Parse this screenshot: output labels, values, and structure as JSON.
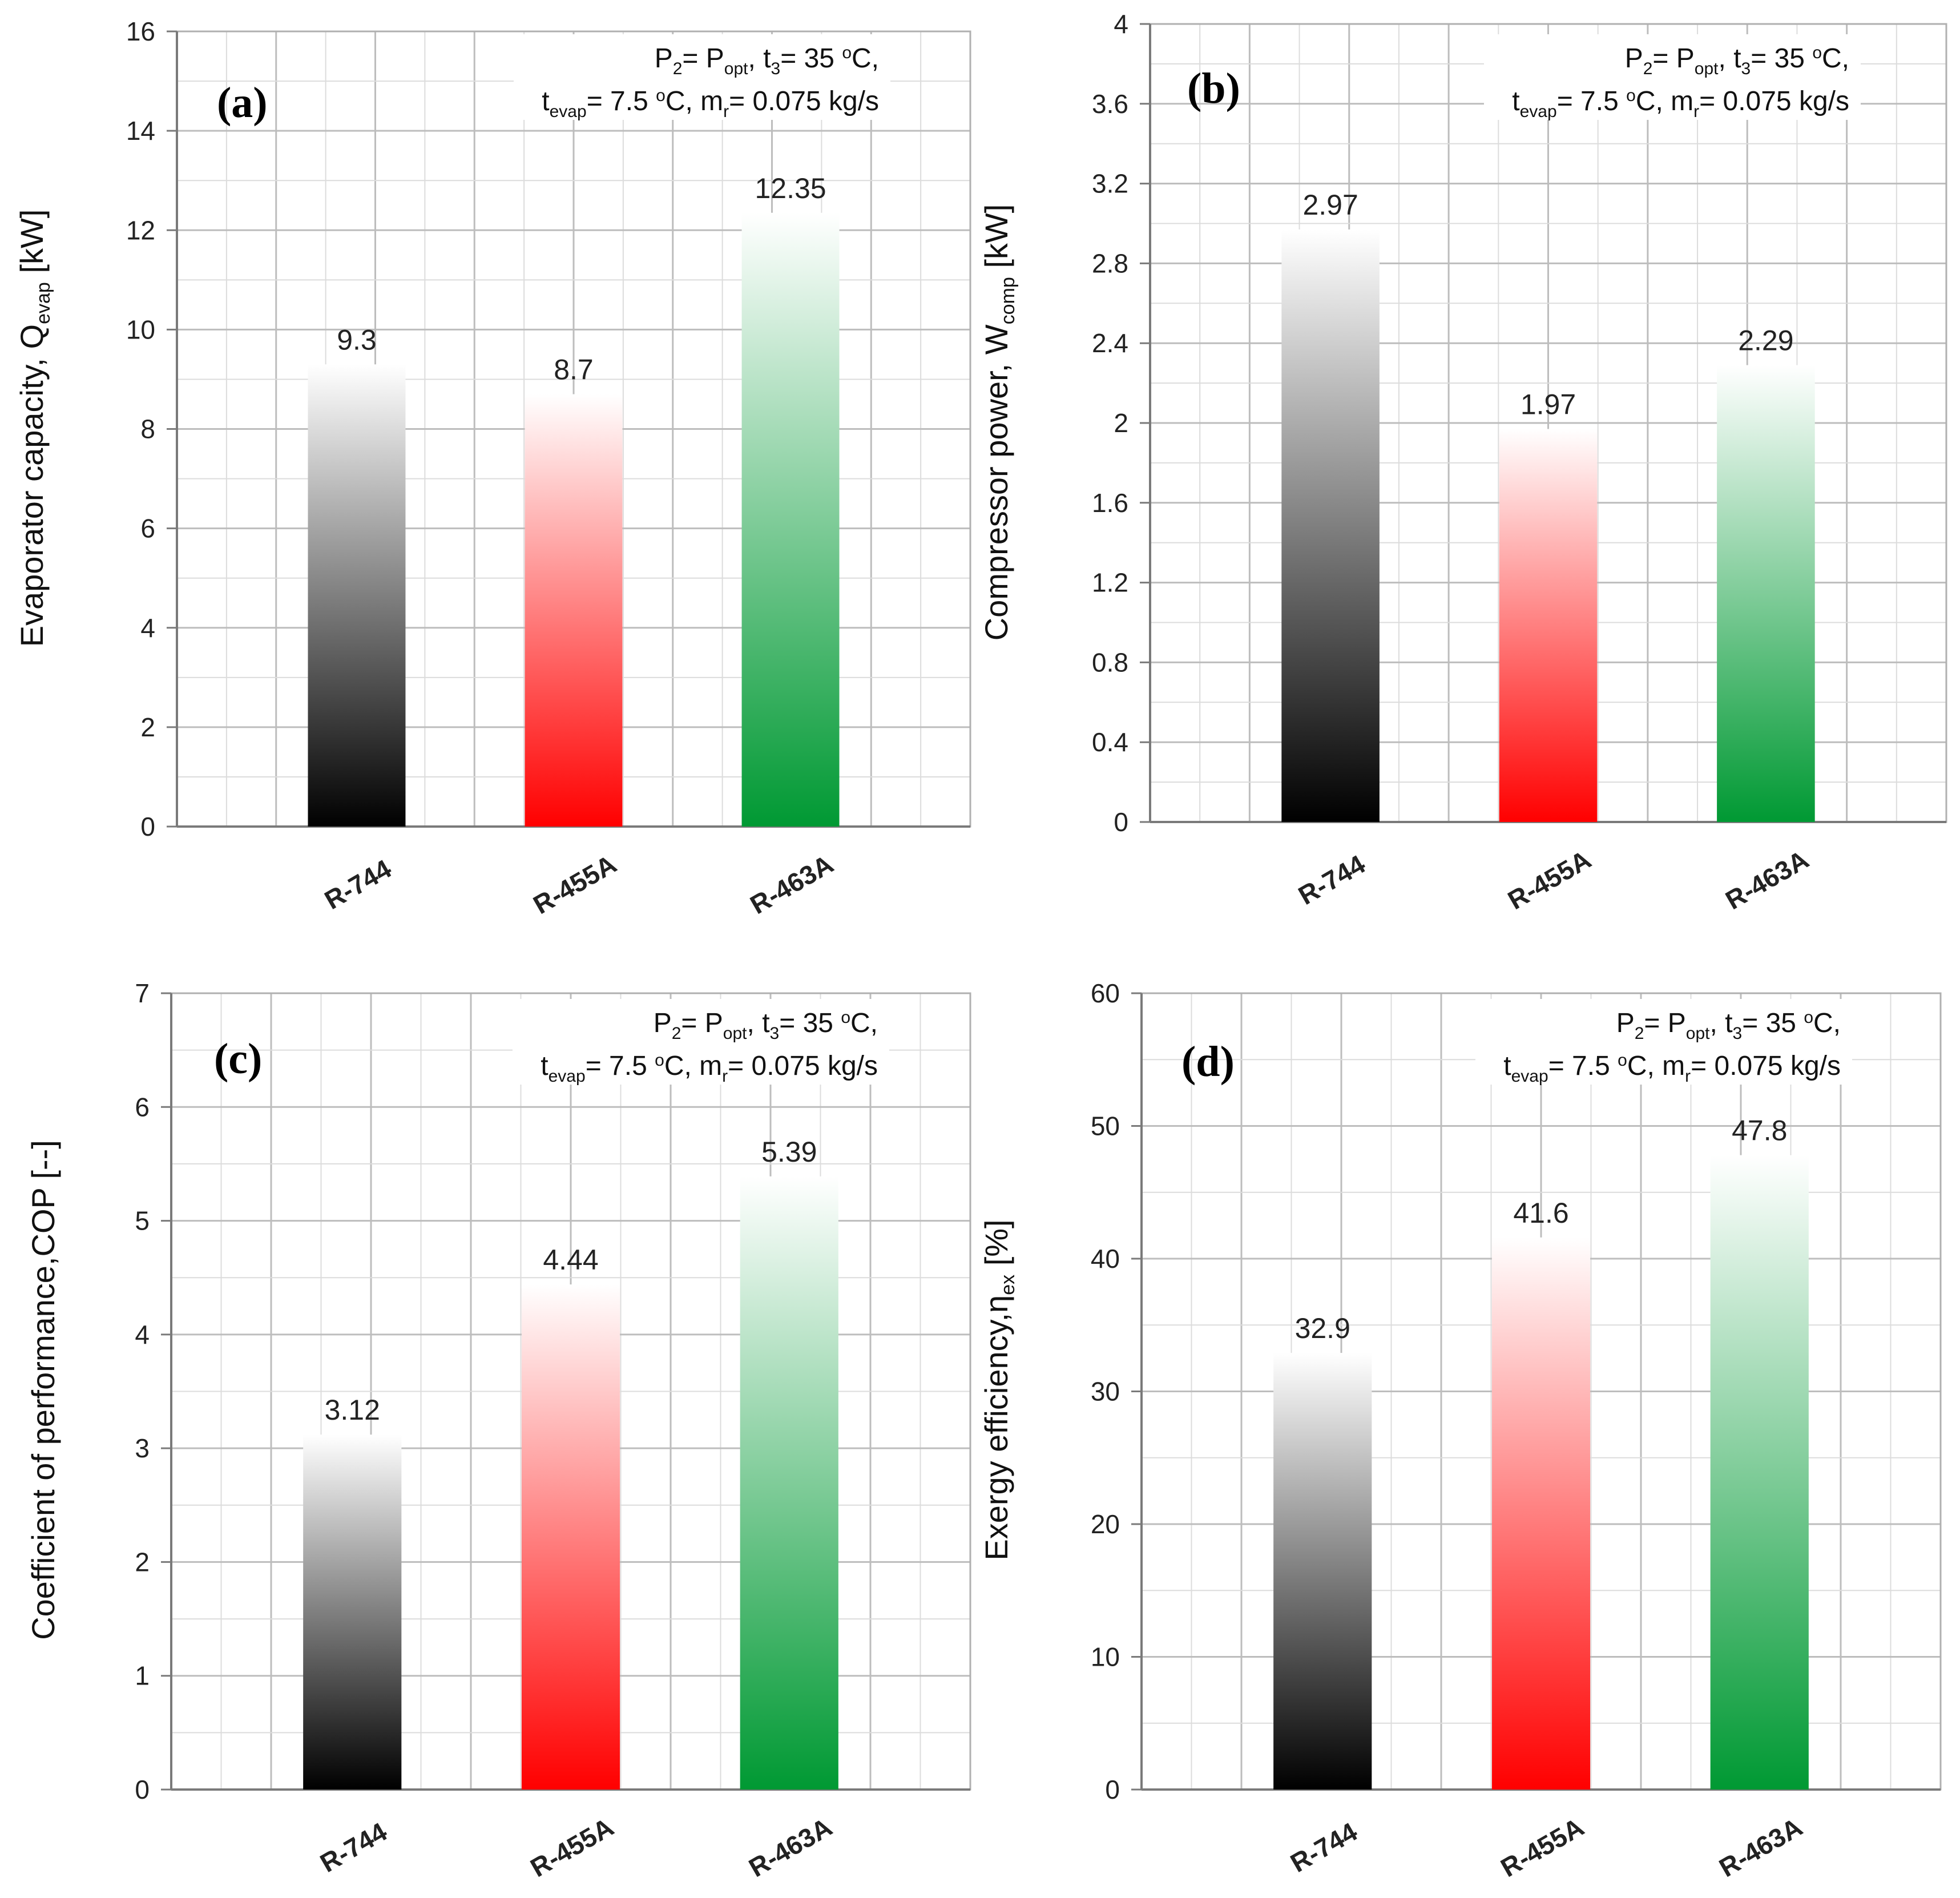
{
  "colors": {
    "r744": "#000000",
    "r455a": "#ff0000",
    "r463a": "#009933",
    "grid": "#d0d0d0",
    "axis": "#8a8a8a"
  },
  "chart_data": [
    {
      "type": "bar",
      "panel": "(a)",
      "categories": [
        "R-744",
        "R-455A",
        "R-463A"
      ],
      "values": [
        9.3,
        8.7,
        12.35
      ],
      "value_labels": [
        "9.3",
        "8.7",
        "12.35"
      ],
      "ylabel": {
        "main": "Evaporator capacity, Q",
        "sub": "evap",
        "unit": "[kW]"
      },
      "ylim": [
        0,
        16
      ],
      "yticks": [
        "0",
        "2",
        "4",
        "6",
        "8",
        "10",
        "12",
        "14",
        "16"
      ],
      "annotation": {
        "line1": [
          "P",
          "2",
          "= P",
          "opt",
          ", t",
          "3",
          "= 35 ",
          "o",
          "C,"
        ],
        "line2": [
          "t",
          "evap",
          "= 7.5 ",
          "o",
          "C, m",
          "r",
          "= 0.075 kg/s"
        ]
      },
      "grid": true
    },
    {
      "type": "bar",
      "panel": "(b)",
      "categories": [
        "R-744",
        "R-455A",
        "R-463A"
      ],
      "values": [
        2.97,
        1.97,
        2.29
      ],
      "value_labels": [
        "2.97",
        "1.97",
        "2.29"
      ],
      "ylabel": {
        "main": "Compressor power, W",
        "sub": "comp",
        "unit": "[kW]"
      },
      "ylim": [
        0,
        4
      ],
      "yticks": [
        "0",
        "0.4",
        "0.8",
        "1.2",
        "1.6",
        "2",
        "2.4",
        "2.8",
        "3.2",
        "3.6",
        "4"
      ],
      "annotation": {
        "line1": [
          "P",
          "2",
          "= P",
          "opt",
          ", t",
          "3",
          "= 35 ",
          "o",
          "C,"
        ],
        "line2": [
          "t",
          "evap",
          "= 7.5 ",
          "o",
          "C, m",
          "r",
          "= 0.075 kg/s"
        ]
      },
      "grid": true
    },
    {
      "type": "bar",
      "panel": "(c)",
      "categories": [
        "R-744",
        "R-455A",
        "R-463A"
      ],
      "values": [
        3.12,
        4.44,
        5.39
      ],
      "value_labels": [
        "3.12",
        "4.44",
        "5.39"
      ],
      "ylabel": {
        "main": "Coefficient of performance,COP [--]",
        "sub": "",
        "unit": ""
      },
      "ylim": [
        0,
        7
      ],
      "yticks": [
        "0",
        "1",
        "2",
        "3",
        "4",
        "5",
        "6",
        "7"
      ],
      "annotation": {
        "line1": [
          "P",
          "2",
          "= P",
          "opt",
          ", t",
          "3",
          "= 35 ",
          "o",
          "C,"
        ],
        "line2": [
          "t",
          "evap",
          "= 7.5 ",
          "o",
          "C, m",
          "r",
          "= 0.075 kg/s"
        ]
      },
      "grid": true
    },
    {
      "type": "bar",
      "panel": "(d)",
      "categories": [
        "R-744",
        "R-455A",
        "R-463A"
      ],
      "values": [
        32.9,
        41.6,
        47.8
      ],
      "value_labels": [
        "32.9",
        "41.6",
        "47.8"
      ],
      "ylabel": {
        "main": "Exergy efficiency,η",
        "sub": "ex",
        "unit": "[%]"
      },
      "ylim": [
        0,
        60
      ],
      "yticks": [
        "0",
        "10",
        "20",
        "30",
        "40",
        "50",
        "60"
      ],
      "annotation": {
        "line1": [
          "P",
          "2",
          "= P",
          "opt",
          ", t",
          "3",
          "= 35 ",
          "o",
          "C,"
        ],
        "line2": [
          "t",
          "evap",
          "= 7.5 ",
          "o",
          "C, m",
          "r",
          "= 0.075 kg/s"
        ]
      },
      "grid": true
    }
  ]
}
